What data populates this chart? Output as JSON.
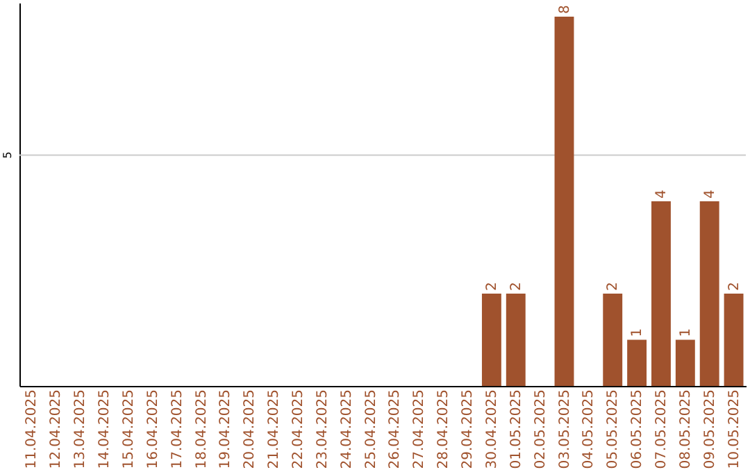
{
  "chart_data": {
    "type": "bar",
    "categories": [
      "11.04.2025",
      "12.04.2025",
      "13.04.2025",
      "14.04.2025",
      "15.04.2025",
      "16.04.2025",
      "17.04.2025",
      "18.04.2025",
      "19.04.2025",
      "20.04.2025",
      "21.04.2025",
      "22.04.2025",
      "23.04.2025",
      "24.04.2025",
      "25.04.2025",
      "26.04.2025",
      "27.04.2025",
      "28.04.2025",
      "29.04.2025",
      "30.04.2025",
      "01.05.2025",
      "02.05.2025",
      "03.05.2025",
      "04.05.2025",
      "05.05.2025",
      "06.05.2025",
      "07.05.2025",
      "08.05.2025",
      "09.05.2025",
      "10.05.2025"
    ],
    "values": [
      null,
      null,
      null,
      null,
      null,
      null,
      null,
      null,
      null,
      null,
      null,
      null,
      null,
      null,
      null,
      null,
      null,
      null,
      null,
      2,
      2,
      null,
      8,
      null,
      2,
      1,
      4,
      1,
      4,
      2
    ],
    "value_labels": [
      null,
      null,
      null,
      null,
      null,
      null,
      null,
      null,
      null,
      null,
      null,
      null,
      null,
      null,
      null,
      null,
      null,
      null,
      null,
      "2",
      "2",
      null,
      "8",
      null,
      "2",
      "1",
      "4",
      "1",
      "4",
      "2"
    ],
    "color": "#a0522d",
    "ylim": [
      0,
      8.3
    ],
    "ref_lines": [
      {
        "axis": "y",
        "value": 5,
        "label": "5",
        "color": "#cccccc"
      }
    ]
  }
}
